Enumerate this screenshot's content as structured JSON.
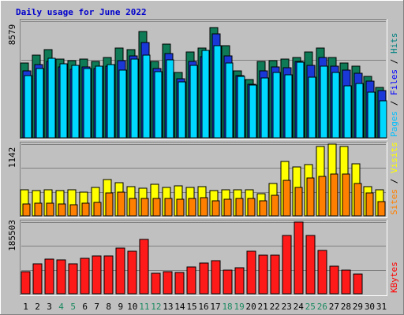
{
  "chart_data": {
    "type": "bar",
    "title": "Daily usage for June 2022",
    "categories": [
      "1",
      "2",
      "3",
      "4",
      "5",
      "6",
      "7",
      "8",
      "9",
      "10",
      "11",
      "12",
      "13",
      "14",
      "15",
      "16",
      "17",
      "18",
      "19",
      "20",
      "21",
      "22",
      "23",
      "24",
      "25",
      "26",
      "27",
      "28",
      "29",
      "30",
      "31"
    ],
    "weekend_days": [
      "4",
      "5",
      "11",
      "12",
      "18",
      "19",
      "25",
      "26"
    ],
    "panels": [
      {
        "id": "hits-files-pages",
        "max_label": "8579",
        "ymax": 8579,
        "legend": [
          {
            "label": "Hits",
            "color": "#008080"
          },
          {
            "label": "Files",
            "color": "#0000ff"
          },
          {
            "label": "Pages",
            "color": "#00bfff"
          }
        ],
        "series": [
          {
            "name": "Hits",
            "color": "#0e7a56",
            "values": [
              5530,
              6100,
              6500,
              5800,
              5700,
              5800,
              5600,
              5900,
              6600,
              6500,
              7800,
              5600,
              6900,
              4800,
              6300,
              6600,
              8100,
              6800,
              4900,
              4300,
              5600,
              5700,
              5800,
              5900,
              6300,
              6600,
              5900,
              5500,
              5300,
              4500,
              3700
            ]
          },
          {
            "name": "Files",
            "color": "#1a38d8",
            "values": [
              4950,
              5400,
              5650,
              5200,
              5050,
              5200,
              5100,
              5300,
              5700,
              6000,
              7000,
              5100,
              6200,
              4350,
              5600,
              5950,
              7650,
              6000,
              4600,
              3950,
              4950,
              5200,
              5150,
              5600,
              5350,
              5900,
              5250,
              5000,
              4750,
              4150,
              3450
            ]
          },
          {
            "name": "Pages",
            "color": "#00d8ff",
            "values": [
              4600,
              5100,
              5850,
              5450,
              5350,
              5100,
              5250,
              5400,
              5000,
              5800,
              6100,
              4850,
              5750,
              4100,
              5350,
              6450,
              6800,
              5500,
              4500,
              3900,
              4400,
              4800,
              4650,
              5550,
              4450,
              5250,
              4800,
              3800,
              4000,
              3350,
              2750
            ]
          }
        ]
      },
      {
        "id": "visits-sites",
        "max_label": "1142",
        "ymax": 1142,
        "legend": [
          {
            "label": "Visits",
            "color": "#ffff00"
          },
          {
            "label": "Sites",
            "color": "#ff8000"
          }
        ],
        "series": [
          {
            "name": "Visits",
            "color": "#ffff00",
            "values": [
              420,
              400,
              420,
              400,
              420,
              380,
              450,
              580,
              530,
              460,
              440,
              500,
              450,
              480,
              450,
              460,
              400,
              420,
              420,
              410,
              350,
              520,
              870,
              780,
              810,
              1100,
              1142,
              1110,
              830,
              460,
              420
            ]
          },
          {
            "name": "Sites",
            "color": "#ff8000",
            "values": [
              190,
              200,
              200,
              190,
              170,
              200,
              210,
              360,
              380,
              270,
              280,
              270,
              270,
              260,
              280,
              290,
              240,
              260,
              280,
              280,
              240,
              330,
              560,
              450,
              600,
              630,
              660,
              660,
              520,
              360,
              230
            ]
          }
        ]
      },
      {
        "id": "kbytes",
        "max_label": "185503",
        "ymax": 185503,
        "legend": [
          {
            "label": "KBytes",
            "color": "#ff0000"
          }
        ],
        "series": [
          {
            "name": "KBytes",
            "color": "#ff1a1a",
            "values": [
              58000,
              78000,
              90000,
              88000,
              78000,
              92000,
              97000,
              97000,
              118000,
              110000,
              140000,
              52000,
              58000,
              55000,
              70000,
              80000,
              85000,
              62000,
              67000,
              110000,
              100000,
              100000,
              150000,
              185503,
              150000,
              112000,
              72000,
              62000,
              50000,
              0,
              0
            ]
          }
        ]
      }
    ]
  }
}
